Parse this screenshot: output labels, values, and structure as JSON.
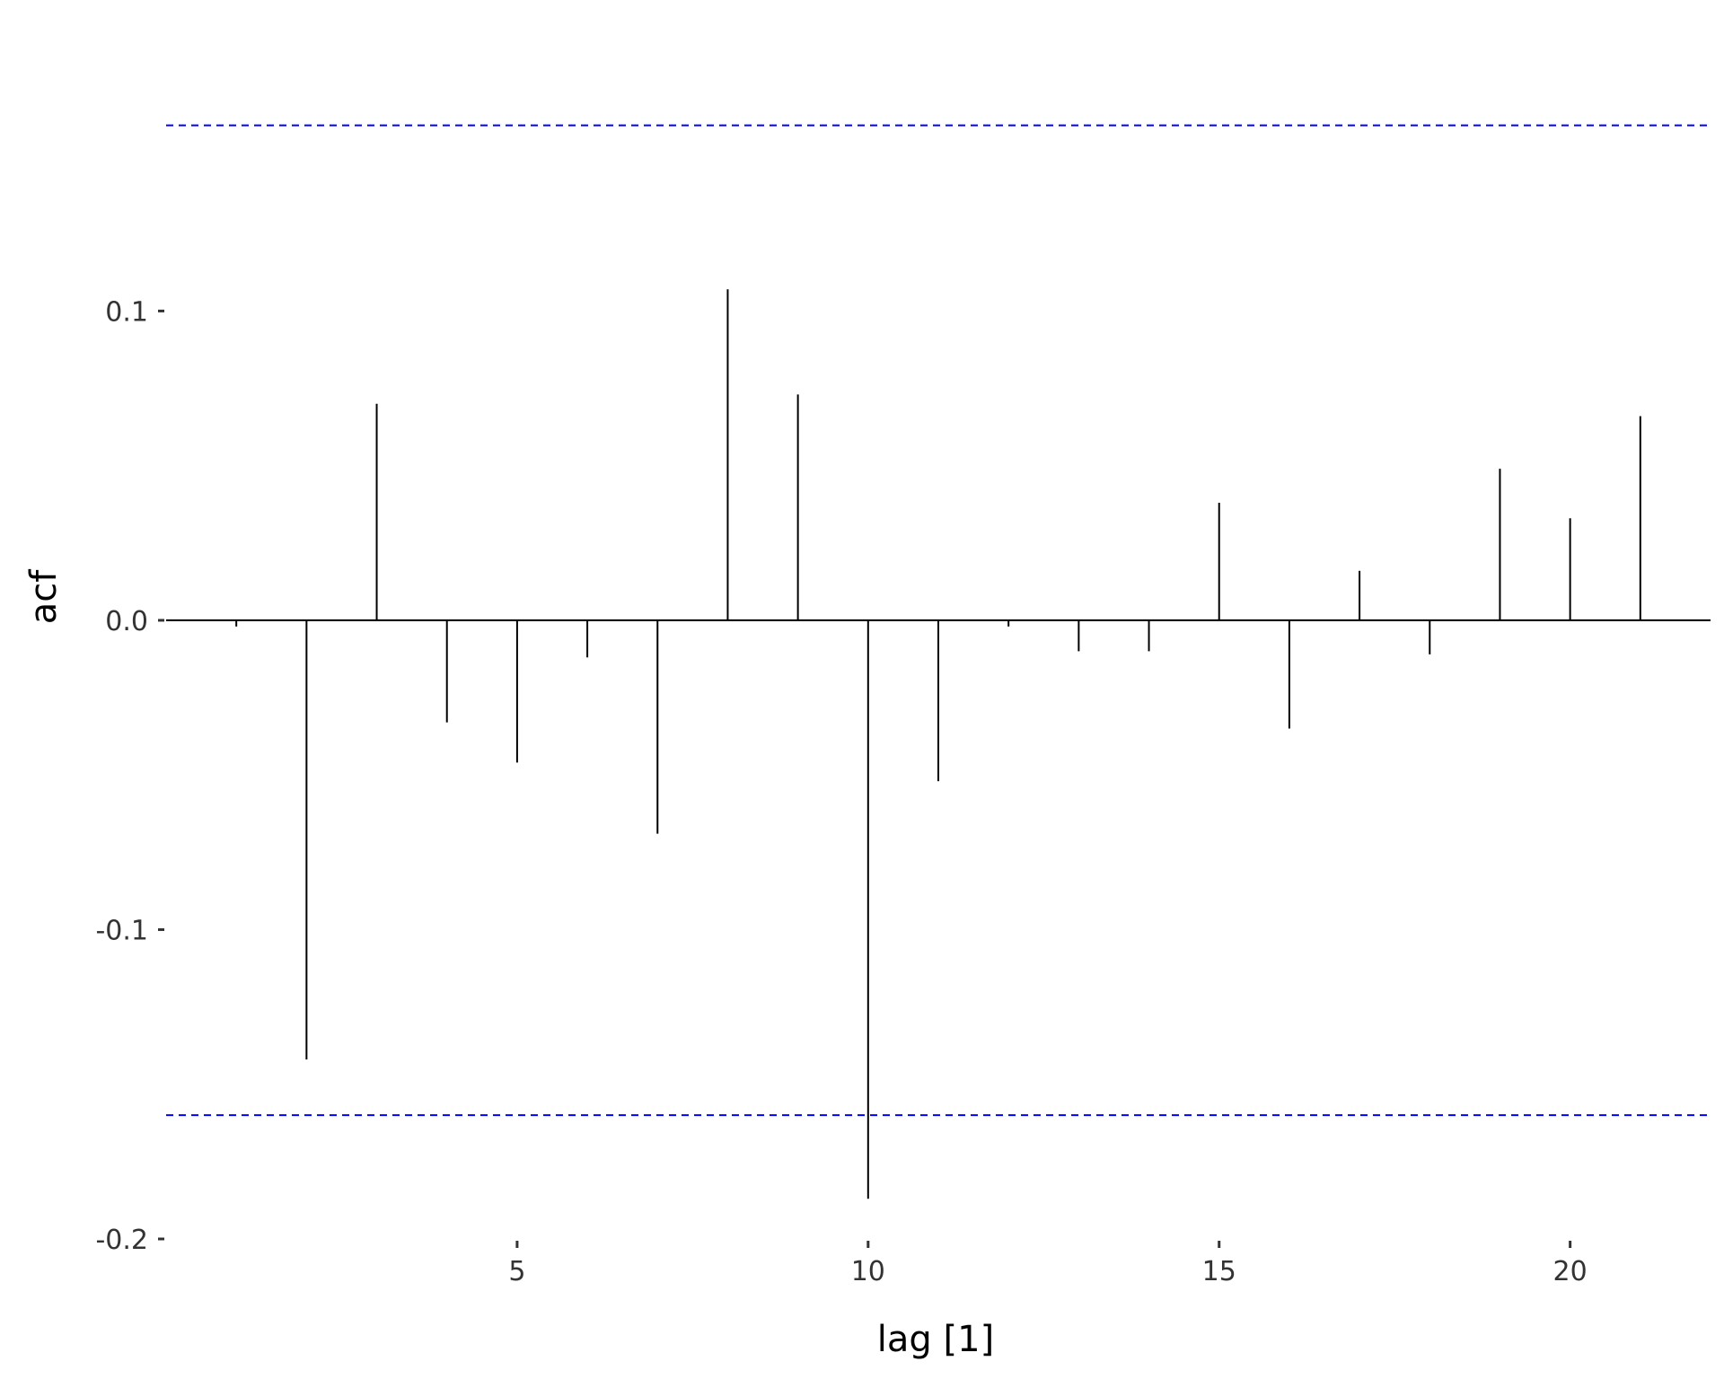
{
  "chart_data": {
    "type": "bar",
    "subtype": "acf-correlogram",
    "title": "",
    "xlabel": "lag [1]",
    "ylabel": "acf",
    "x": [
      1,
      2,
      3,
      4,
      5,
      6,
      7,
      8,
      9,
      10,
      11,
      12,
      13,
      14,
      15,
      16,
      17,
      18,
      19,
      20,
      21
    ],
    "values": [
      -0.002,
      -0.142,
      0.07,
      -0.033,
      -0.046,
      -0.012,
      -0.069,
      0.107,
      0.073,
      -0.187,
      -0.052,
      -0.002,
      -0.01,
      -0.01,
      0.038,
      -0.035,
      0.016,
      -0.011,
      0.049,
      0.033,
      0.066
    ],
    "confidence_band": 0.16,
    "ylim": [
      -0.2,
      0.175
    ],
    "xlim": [
      0.0,
      22.0
    ],
    "yticks": [
      {
        "value": -0.2,
        "label": "-0.2"
      },
      {
        "value": -0.1,
        "label": "-0.1"
      },
      {
        "value": 0.0,
        "label": "0.0"
      },
      {
        "value": 0.1,
        "label": "0.1"
      }
    ],
    "xticks": [
      {
        "value": 5,
        "label": "5"
      },
      {
        "value": 10,
        "label": "10"
      },
      {
        "value": 15,
        "label": "15"
      },
      {
        "value": 20,
        "label": "20"
      }
    ],
    "grid": false,
    "colors": {
      "bars": "#000000",
      "confidence_lines": "#0000ff",
      "zero_line": "#000000",
      "tick_text": "#333333",
      "axis_title": "#000000"
    }
  }
}
